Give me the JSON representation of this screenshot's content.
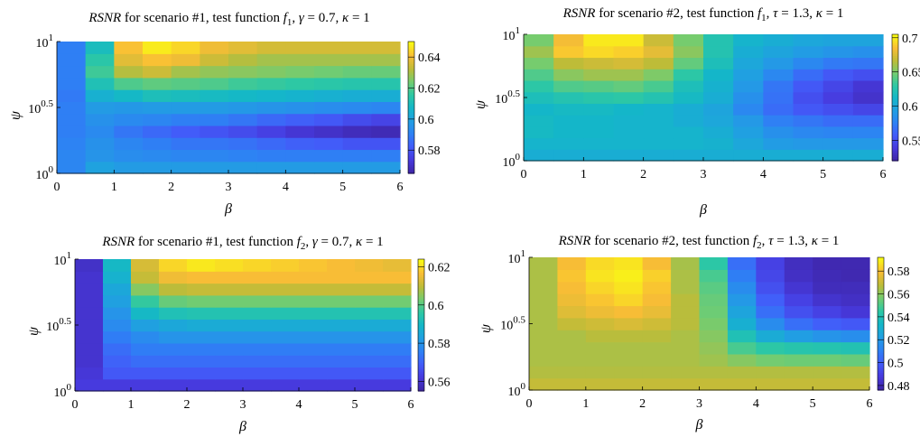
{
  "chart_data": [
    {
      "type": "heatmap",
      "title_parts": [
        "RSNR",
        " for scenario #1, test function ",
        "f",
        "1",
        ", ",
        "γ",
        " = 0.7, ",
        "κ",
        " = 1"
      ],
      "xlabel": "β",
      "ylabel": "ψ",
      "x_ticks": [
        "0",
        "1",
        "2",
        "3",
        "4",
        "5",
        "6"
      ],
      "y_ticks": [
        {
          "base": "10",
          "exp": "0"
        },
        {
          "base": "10",
          "exp": "0.5"
        },
        {
          "base": "10",
          "exp": "1"
        }
      ],
      "x_range": [
        0,
        6
      ],
      "y_range": [
        0,
        1
      ],
      "colorbar_ticks": [
        "0.58",
        "0.6",
        "0.62",
        "0.64"
      ],
      "clim": [
        0.565,
        0.65
      ],
      "rows": [
        [
          0.592,
          0.6,
          0.598,
          0.598,
          0.598,
          0.598,
          0.598,
          0.598,
          0.598,
          0.598,
          0.598,
          0.598
        ],
        [
          0.592,
          0.596,
          0.594,
          0.593,
          0.592,
          0.592,
          0.591,
          0.59,
          0.59,
          0.59,
          0.59,
          0.59
        ],
        [
          0.591,
          0.595,
          0.592,
          0.59,
          0.588,
          0.588,
          0.587,
          0.585,
          0.583,
          0.582,
          0.58,
          0.58
        ],
        [
          0.59,
          0.593,
          0.588,
          0.585,
          0.582,
          0.58,
          0.578,
          0.575,
          0.572,
          0.57,
          0.568,
          0.567
        ],
        [
          0.59,
          0.595,
          0.593,
          0.592,
          0.59,
          0.59,
          0.588,
          0.585,
          0.583,
          0.581,
          0.578,
          0.576
        ],
        [
          0.59,
          0.598,
          0.597,
          0.598,
          0.598,
          0.598,
          0.597,
          0.596,
          0.595,
          0.594,
          0.593,
          0.592
        ],
        [
          0.589,
          0.605,
          0.608,
          0.611,
          0.61,
          0.609,
          0.608,
          0.607,
          0.606,
          0.605,
          0.604,
          0.604
        ],
        [
          0.59,
          0.612,
          0.62,
          0.622,
          0.621,
          0.62,
          0.618,
          0.617,
          0.616,
          0.615,
          0.614,
          0.614
        ],
        [
          0.59,
          0.618,
          0.632,
          0.635,
          0.63,
          0.628,
          0.627,
          0.626,
          0.625,
          0.624,
          0.623,
          0.623
        ],
        [
          0.59,
          0.615,
          0.638,
          0.642,
          0.64,
          0.635,
          0.632,
          0.63,
          0.63,
          0.63,
          0.63,
          0.63
        ],
        [
          0.59,
          0.61,
          0.642,
          0.648,
          0.645,
          0.64,
          0.638,
          0.636,
          0.636,
          0.636,
          0.636,
          0.636
        ]
      ]
    },
    {
      "type": "heatmap",
      "title_parts": [
        "RSNR",
        " for scenario #2, test function ",
        "f",
        "1",
        ", ",
        "τ",
        " = 1.3, ",
        "κ",
        " = 1"
      ],
      "xlabel": "β",
      "ylabel": "ψ",
      "x_ticks": [
        "0",
        "1",
        "2",
        "3",
        "4",
        "5",
        "6"
      ],
      "y_ticks": [
        {
          "base": "10",
          "exp": "0"
        },
        {
          "base": "10",
          "exp": "0.5"
        },
        {
          "base": "10",
          "exp": "1"
        }
      ],
      "x_range": [
        0,
        6
      ],
      "y_range": [
        0,
        1
      ],
      "colorbar_ticks": [
        "0.55",
        "0.6",
        "0.65",
        "0.7"
      ],
      "clim": [
        0.52,
        0.705
      ],
      "rows": [
        [
          0.605,
          0.605,
          0.605,
          0.605,
          0.605,
          0.605,
          0.605,
          0.605,
          0.605,
          0.605,
          0.605,
          0.605
        ],
        [
          0.61,
          0.61,
          0.61,
          0.61,
          0.61,
          0.61,
          0.608,
          0.6,
          0.592,
          0.59,
          0.59,
          0.59
        ],
        [
          0.615,
          0.612,
          0.612,
          0.61,
          0.61,
          0.61,
          0.605,
          0.595,
          0.585,
          0.58,
          0.578,
          0.578
        ],
        [
          0.615,
          0.612,
          0.612,
          0.61,
          0.61,
          0.605,
          0.6,
          0.59,
          0.575,
          0.57,
          0.565,
          0.565
        ],
        [
          0.612,
          0.615,
          0.615,
          0.612,
          0.61,
          0.605,
          0.598,
          0.58,
          0.565,
          0.555,
          0.55,
          0.545
        ],
        [
          0.62,
          0.625,
          0.628,
          0.63,
          0.625,
          0.615,
          0.605,
          0.585,
          0.568,
          0.55,
          0.54,
          0.532
        ],
        [
          0.63,
          0.64,
          0.642,
          0.645,
          0.638,
          0.62,
          0.608,
          0.59,
          0.57,
          0.555,
          0.545,
          0.535
        ],
        [
          0.64,
          0.655,
          0.66,
          0.66,
          0.652,
          0.63,
          0.612,
          0.595,
          0.58,
          0.565,
          0.555,
          0.55
        ],
        [
          0.65,
          0.668,
          0.672,
          0.675,
          0.668,
          0.645,
          0.62,
          0.6,
          0.59,
          0.58,
          0.572,
          0.57
        ],
        [
          0.66,
          0.69,
          0.695,
          0.692,
          0.68,
          0.655,
          0.625,
          0.605,
          0.598,
          0.592,
          0.588,
          0.585
        ],
        [
          0.65,
          0.685,
          0.7,
          0.7,
          0.672,
          0.65,
          0.625,
          0.61,
          0.605,
          0.6,
          0.598,
          0.598
        ]
      ]
    },
    {
      "type": "heatmap",
      "title_parts": [
        "RSNR",
        " for scenario #1, test function ",
        "f",
        "2",
        ", ",
        "γ",
        " = 0.7, ",
        "κ",
        " = 1"
      ],
      "xlabel": "β",
      "ylabel": "ψ",
      "x_ticks": [
        "0",
        "1",
        "2",
        "3",
        "4",
        "5",
        "6"
      ],
      "y_ticks": [
        {
          "base": "10",
          "exp": "0"
        },
        {
          "base": "10",
          "exp": "0.5"
        },
        {
          "base": "10",
          "exp": "1"
        }
      ],
      "x_range": [
        0,
        6
      ],
      "y_range": [
        0,
        1
      ],
      "colorbar_ticks": [
        "0.56",
        "0.58",
        "0.6",
        "0.62"
      ],
      "clim": [
        0.555,
        0.624
      ],
      "rows": [
        [
          0.562,
          0.562,
          0.562,
          0.562,
          0.562,
          0.562,
          0.562,
          0.562,
          0.562,
          0.562,
          0.562,
          0.562
        ],
        [
          0.561,
          0.568,
          0.568,
          0.568,
          0.568,
          0.568,
          0.568,
          0.568,
          0.568,
          0.568,
          0.568,
          0.568
        ],
        [
          0.56,
          0.57,
          0.572,
          0.572,
          0.572,
          0.572,
          0.572,
          0.572,
          0.572,
          0.572,
          0.572,
          0.572
        ],
        [
          0.56,
          0.572,
          0.575,
          0.575,
          0.575,
          0.575,
          0.575,
          0.575,
          0.575,
          0.575,
          0.575,
          0.575
        ],
        [
          0.56,
          0.575,
          0.578,
          0.58,
          0.58,
          0.58,
          0.58,
          0.58,
          0.58,
          0.58,
          0.58,
          0.58
        ],
        [
          0.56,
          0.578,
          0.583,
          0.585,
          0.586,
          0.586,
          0.586,
          0.586,
          0.586,
          0.586,
          0.586,
          0.586
        ],
        [
          0.56,
          0.58,
          0.59,
          0.593,
          0.594,
          0.594,
          0.594,
          0.594,
          0.594,
          0.594,
          0.594,
          0.594
        ],
        [
          0.56,
          0.583,
          0.597,
          0.602,
          0.603,
          0.603,
          0.603,
          0.603,
          0.603,
          0.603,
          0.603,
          0.603
        ],
        [
          0.56,
          0.585,
          0.605,
          0.61,
          0.611,
          0.611,
          0.611,
          0.611,
          0.611,
          0.611,
          0.611,
          0.611
        ],
        [
          0.56,
          0.588,
          0.611,
          0.616,
          0.617,
          0.617,
          0.617,
          0.617,
          0.617,
          0.617,
          0.617,
          0.617
        ],
        [
          0.559,
          0.59,
          0.613,
          0.62,
          0.622,
          0.621,
          0.62,
          0.619,
          0.618,
          0.617,
          0.616,
          0.615
        ]
      ]
    },
    {
      "type": "heatmap",
      "title_parts": [
        "RSNR",
        " for scenario #2, test function ",
        "f",
        "2",
        ", ",
        "τ",
        " = 1.3, ",
        "κ",
        " = 1"
      ],
      "xlabel": "β",
      "ylabel": "ψ",
      "x_ticks": [
        "0",
        "1",
        "2",
        "3",
        "4",
        "5",
        "6"
      ],
      "y_ticks": [
        {
          "base": "10",
          "exp": "0"
        },
        {
          "base": "10",
          "exp": "0.5"
        },
        {
          "base": "10",
          "exp": "1"
        }
      ],
      "x_range": [
        0,
        6
      ],
      "y_range": [
        0,
        1
      ],
      "colorbar_ticks": [
        "0.48",
        "0.5",
        "0.52",
        "0.54",
        "0.56",
        "0.58"
      ],
      "clim": [
        0.476,
        0.592
      ],
      "rows": [
        [
          0.57,
          0.57,
          0.57,
          0.57,
          0.57,
          0.57,
          0.57,
          0.57,
          0.57,
          0.57,
          0.57,
          0.57
        ],
        [
          0.567,
          0.567,
          0.567,
          0.567,
          0.567,
          0.567,
          0.567,
          0.567,
          0.567,
          0.567,
          0.567,
          0.567
        ],
        [
          0.566,
          0.566,
          0.566,
          0.566,
          0.566,
          0.566,
          0.564,
          0.56,
          0.557,
          0.556,
          0.556,
          0.555
        ],
        [
          0.566,
          0.566,
          0.566,
          0.566,
          0.566,
          0.566,
          0.562,
          0.55,
          0.545,
          0.543,
          0.542,
          0.541
        ],
        [
          0.566,
          0.566,
          0.568,
          0.568,
          0.568,
          0.566,
          0.56,
          0.54,
          0.528,
          0.522,
          0.518,
          0.516
        ],
        [
          0.566,
          0.57,
          0.572,
          0.574,
          0.572,
          0.568,
          0.558,
          0.53,
          0.515,
          0.505,
          0.5,
          0.498
        ],
        [
          0.566,
          0.575,
          0.578,
          0.58,
          0.577,
          0.568,
          0.556,
          0.525,
          0.505,
          0.495,
          0.49,
          0.486
        ],
        [
          0.566,
          0.578,
          0.582,
          0.585,
          0.58,
          0.568,
          0.555,
          0.52,
          0.5,
          0.49,
          0.484,
          0.482
        ],
        [
          0.566,
          0.58,
          0.585,
          0.588,
          0.582,
          0.566,
          0.553,
          0.515,
          0.495,
          0.485,
          0.48,
          0.48
        ],
        [
          0.566,
          0.582,
          0.588,
          0.59,
          0.584,
          0.566,
          0.55,
          0.51,
          0.492,
          0.482,
          0.479,
          0.478
        ],
        [
          0.566,
          0.58,
          0.586,
          0.588,
          0.58,
          0.565,
          0.545,
          0.505,
          0.49,
          0.481,
          0.478,
          0.478
        ]
      ]
    }
  ]
}
